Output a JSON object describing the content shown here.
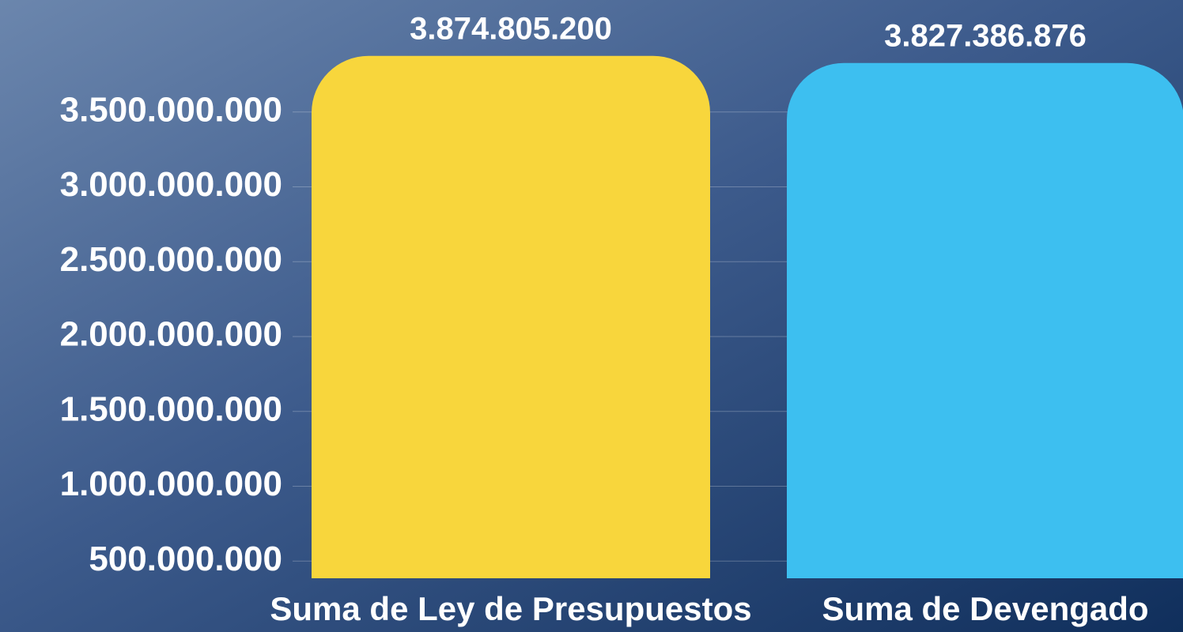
{
  "chart_data": {
    "type": "bar",
    "categories": [
      "Suma de Ley de Presupuestos",
      "Suma de Devengado"
    ],
    "values": [
      3874805200,
      3827386876
    ],
    "value_labels": [
      "3.874.805.200",
      "3.827.386.876"
    ],
    "colors": [
      "#f8d63c",
      "#3dbff0"
    ],
    "ylim": [
      0,
      4000000000
    ],
    "yticks": [
      {
        "value": 500000000,
        "label": "500.000.000"
      },
      {
        "value": 1000000000,
        "label": "1.000.000.000"
      },
      {
        "value": 1500000000,
        "label": "1.500.000.000"
      },
      {
        "value": 2000000000,
        "label": "2.000.000.000"
      },
      {
        "value": 2500000000,
        "label": "2.500.000.000"
      },
      {
        "value": 3000000000,
        "label": "3.000.000.000"
      },
      {
        "value": 3500000000,
        "label": "3.500.000.000"
      }
    ],
    "grid": true
  }
}
